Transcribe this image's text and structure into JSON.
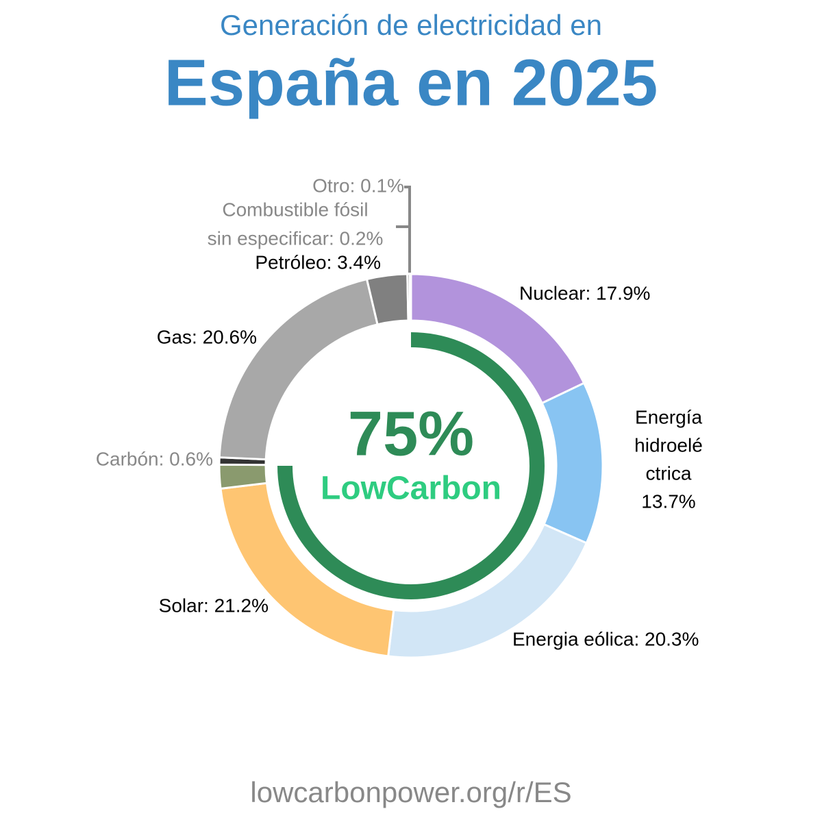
{
  "chart_data": {
    "type": "donut",
    "subtitle": "Generación de electricidad en",
    "title": "España en 2025",
    "labels": [
      [
        "Nuclear: 17.9%"
      ],
      [
        "Energía",
        "hidroelé",
        "ctrica",
        "13.7%"
      ],
      [
        "Energia eólica: 20.3%"
      ],
      [
        "Solar: 21.2%"
      ],
      null,
      [
        "Carbón: 0.6%"
      ],
      [
        "Gas: 20.6%"
      ],
      [
        "Petróleo: 3.4%"
      ],
      [
        "Combustible fósil",
        "sin especificar: 0.2%"
      ],
      [
        "Otro: 0.1%"
      ]
    ],
    "values": [
      17.9,
      13.7,
      20.3,
      21.2,
      2.0,
      0.6,
      20.6,
      3.4,
      0.2,
      0.1
    ],
    "colors": [
      "#b293dc",
      "#88c4f2",
      "#d2e6f6",
      "#fec572",
      "#8a9a6e",
      "#333333",
      "#a8a8a8",
      "#808080",
      "#555555",
      "#bbbbbb"
    ],
    "center": {
      "value": 75,
      "label": "75%",
      "text": "LowCarbon",
      "color": "#2e8b57",
      "text_color": "#2ecc80"
    },
    "footer": "lowcarbonpower.org/r/ES"
  }
}
